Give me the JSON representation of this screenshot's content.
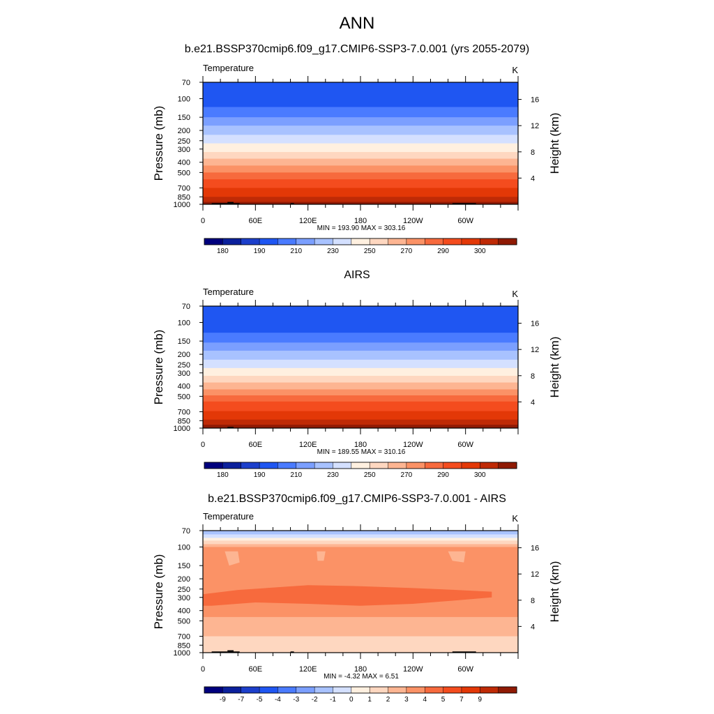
{
  "page": {
    "main_title": "ANN"
  },
  "chart_data": [
    {
      "type": "heatmap",
      "title": "b.e21.BSSP370cmip6.f09_g17.CMIP6-SSP3-7.0.001 (yrs 2055-2079)",
      "left_label": "Temperature",
      "right_label": "K",
      "ylabel": "Pressure (mb)",
      "ylabel_right": "Height (km)",
      "y_ticks": [
        "70",
        "100",
        "150",
        "200",
        "250",
        "300",
        "400",
        "500",
        "700",
        "850",
        "1000"
      ],
      "y_tick_values": [
        70,
        100,
        150,
        200,
        250,
        300,
        400,
        500,
        700,
        850,
        1000
      ],
      "height_ticks": [
        "16",
        "12",
        "8",
        "4"
      ],
      "height_values": [
        16,
        12,
        8,
        4
      ],
      "x_ticks": [
        "0",
        "60E",
        "120E",
        "180",
        "120W",
        "60W"
      ],
      "x_tick_values": [
        0,
        60,
        120,
        180,
        240,
        300
      ],
      "xlim": [
        0,
        360
      ],
      "min_max": "MIN = 193.90  MAX = 303.16",
      "colorbar_labels": [
        "180",
        "190",
        "210",
        "230",
        "250",
        "270",
        "290",
        "300"
      ],
      "bands": [
        {
          "p": 70,
          "level": 3
        },
        {
          "p": 120,
          "level": 4
        },
        {
          "p": 150,
          "level": 5
        },
        {
          "p": 180,
          "level": 6
        },
        {
          "p": 220,
          "level": 7
        },
        {
          "p": 265,
          "level": 8
        },
        {
          "p": 320,
          "level": 9
        },
        {
          "p": 370,
          "level": 10
        },
        {
          "p": 430,
          "level": 11
        },
        {
          "p": 500,
          "level": 12
        },
        {
          "p": 580,
          "level": 13
        },
        {
          "p": 700,
          "level": 14
        },
        {
          "p": 850,
          "level": 15
        },
        {
          "p": 950,
          "level": 16
        }
      ],
      "terrain": [
        {
          "lon0": 10,
          "lon1": 28,
          "p": 975
        },
        {
          "lon0": 28,
          "lon1": 35,
          "p": 950
        },
        {
          "lon0": 35,
          "lon1": 42,
          "p": 975
        },
        {
          "lon0": 100,
          "lon1": 104,
          "p": 975
        },
        {
          "lon0": 285,
          "lon1": 312,
          "p": 975
        }
      ]
    },
    {
      "type": "heatmap",
      "title": "AIRS",
      "left_label": "Temperature",
      "right_label": "K",
      "ylabel": "Pressure (mb)",
      "ylabel_right": "Height (km)",
      "y_ticks": [
        "70",
        "100",
        "150",
        "200",
        "250",
        "300",
        "400",
        "500",
        "700",
        "850",
        "1000"
      ],
      "y_tick_values": [
        70,
        100,
        150,
        200,
        250,
        300,
        400,
        500,
        700,
        850,
        1000
      ],
      "height_ticks": [
        "16",
        "12",
        "8",
        "4"
      ],
      "height_values": [
        16,
        12,
        8,
        4
      ],
      "x_ticks": [
        "0",
        "60E",
        "120E",
        "180",
        "120W",
        "60W"
      ],
      "x_tick_values": [
        0,
        60,
        120,
        180,
        240,
        300
      ],
      "xlim": [
        0,
        360
      ],
      "min_max": "MIN = 189.55  MAX = 310.16",
      "colorbar_labels": [
        "180",
        "190",
        "210",
        "230",
        "250",
        "270",
        "290",
        "300"
      ],
      "bands": [
        {
          "p": 70,
          "level": 3
        },
        {
          "p": 125,
          "level": 4
        },
        {
          "p": 155,
          "level": 5
        },
        {
          "p": 185,
          "level": 6
        },
        {
          "p": 225,
          "level": 7
        },
        {
          "p": 270,
          "level": 8
        },
        {
          "p": 320,
          "level": 9
        },
        {
          "p": 370,
          "level": 10
        },
        {
          "p": 430,
          "level": 11
        },
        {
          "p": 490,
          "level": 12
        },
        {
          "p": 560,
          "level": 13
        },
        {
          "p": 690,
          "level": 14
        },
        {
          "p": 830,
          "level": 15
        },
        {
          "p": 930,
          "level": 16
        }
      ],
      "terrain": [
        {
          "lon0": 28,
          "lon1": 35,
          "p": 975
        }
      ]
    },
    {
      "type": "heatmap",
      "title": "b.e21.BSSP370cmip6.f09_g17.CMIP6-SSP3-7.0.001 - AIRS",
      "left_label": "Temperature",
      "right_label": "K",
      "ylabel": "Pressure (mb)",
      "ylabel_right": "Height (km)",
      "y_ticks": [
        "70",
        "100",
        "150",
        "200",
        "250",
        "300",
        "400",
        "500",
        "700",
        "850",
        "1000"
      ],
      "y_tick_values": [
        70,
        100,
        150,
        200,
        250,
        300,
        400,
        500,
        700,
        850,
        1000
      ],
      "height_ticks": [
        "16",
        "12",
        "8",
        "4"
      ],
      "height_values": [
        16,
        12,
        8,
        4
      ],
      "x_ticks": [
        "0",
        "60E",
        "120E",
        "180",
        "120W",
        "60W"
      ],
      "x_tick_values": [
        0,
        60,
        120,
        180,
        240,
        300
      ],
      "xlim": [
        0,
        360
      ],
      "min_max": "MIN =  -4.32  MAX =   6.51",
      "colorbar_labels": [
        "-9",
        "-7",
        "-5",
        "-4",
        "-3",
        "-2",
        "-1",
        "0",
        "1",
        "2",
        "3",
        "4",
        "5",
        "7",
        "9"
      ],
      "bands": [
        {
          "p": 70,
          "level": 6
        },
        {
          "p": 76,
          "level": 7
        },
        {
          "p": 82,
          "level": 8
        },
        {
          "p": 87,
          "level": 9
        },
        {
          "p": 94,
          "level": 10
        },
        {
          "p": 100,
          "level": 11
        },
        {
          "p": 460,
          "level": 10
        },
        {
          "p": 700,
          "level": 9
        }
      ],
      "features": [
        {
          "level": 12,
          "p0": 200,
          "p1": 390,
          "points": [
            [
              0,
              280
            ],
            [
              40,
              255
            ],
            [
              120,
              230
            ],
            [
              180,
              235
            ],
            [
              240,
              245
            ],
            [
              290,
              255
            ],
            [
              330,
              265
            ],
            [
              330,
              300
            ],
            [
              290,
              320
            ],
            [
              240,
              345
            ],
            [
              180,
              360
            ],
            [
              120,
              345
            ],
            [
              60,
              335
            ],
            [
              10,
              360
            ],
            [
              0,
              360
            ]
          ]
        },
        {
          "level": 10,
          "points": [
            [
              25,
              110
            ],
            [
              40,
              110
            ],
            [
              42,
              140
            ],
            [
              30,
              150
            ]
          ]
        },
        {
          "level": 10,
          "points": [
            [
              130,
              110
            ],
            [
              140,
              110
            ],
            [
              138,
              135
            ],
            [
              131,
              135
            ]
          ]
        },
        {
          "level": 10,
          "points": [
            [
              280,
              110
            ],
            [
              300,
              110
            ],
            [
              298,
              140
            ],
            [
              285,
              135
            ]
          ]
        }
      ],
      "terrain": [
        {
          "lon0": 10,
          "lon1": 28,
          "p": 975
        },
        {
          "lon0": 28,
          "lon1": 35,
          "p": 950
        },
        {
          "lon0": 35,
          "lon1": 42,
          "p": 975
        },
        {
          "lon0": 100,
          "lon1": 104,
          "p": 975
        },
        {
          "lon0": 285,
          "lon1": 312,
          "p": 975
        }
      ]
    }
  ],
  "colors": {
    "palette": [
      "#00007d",
      "#0b209c",
      "#1c3fcb",
      "#1f56f2",
      "#4a7bff",
      "#7b9fff",
      "#a8c2ff",
      "#d4e0ff",
      "#fff0e0",
      "#fed7c0",
      "#fdb592",
      "#fb9266",
      "#f76a3d",
      "#f44c1e",
      "#e33807",
      "#bf2a06",
      "#8f1a04"
    ],
    "terrain": "#000000"
  }
}
